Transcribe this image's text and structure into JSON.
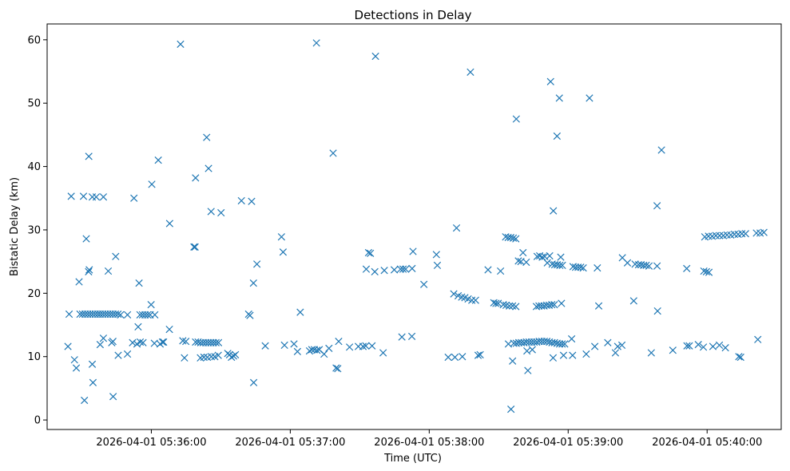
{
  "chart_data": {
    "type": "scatter",
    "title": "Detections in Delay",
    "xlabel": "Time (UTC)",
    "ylabel": "Bistatic Delay (km)",
    "marker": "x",
    "color": "#1f77b4",
    "grid": false,
    "xlim": [
      "2026-04-01 05:35:15",
      "2026-04-01 05:40:32"
    ],
    "ylim": [
      -1.5,
      62.5
    ],
    "xticks": [
      "2026-04-01 05:36:00",
      "2026-04-01 05:37:00",
      "2026-04-01 05:38:00",
      "2026-04-01 05:39:00",
      "2026-04-01 05:40:00"
    ],
    "yticks": [
      0,
      10,
      20,
      30,
      40,
      50,
      60
    ],
    "points": [
      [
        "2026-04-01 05:35:24.0",
        11.6
      ],
      [
        "2026-04-01 05:35:25.4",
        35.3
      ],
      [
        "2026-04-01 05:35:26.8",
        9.5
      ],
      [
        "2026-04-01 05:35:27.6",
        8.2
      ],
      [
        "2026-04-01 05:35:28.8",
        21.8
      ],
      [
        "2026-04-01 05:35:30.7",
        35.3
      ],
      [
        "2026-04-01 05:35:31.1",
        3.1
      ],
      [
        "2026-04-01 05:35:31.9",
        28.6
      ],
      [
        "2026-04-01 05:35:33.0",
        41.6
      ],
      [
        "2026-04-01 05:35:34.5",
        35.2
      ],
      [
        "2026-04-01 05:35:36.2",
        35.2
      ],
      [
        "2026-04-01 05:35:39.3",
        35.2
      ],
      [
        "2026-04-01 05:35:32.9",
        23.4
      ],
      [
        "2026-04-01 05:35:33.2",
        23.7
      ],
      [
        "2026-04-01 05:35:34.5",
        8.8
      ],
      [
        "2026-04-01 05:35:34.8",
        5.9
      ],
      [
        "2026-04-01 05:35:37.9",
        11.9
      ],
      [
        "2026-04-01 05:35:39.3",
        12.9
      ],
      [
        "2026-04-01 05:35:41.4",
        23.5
      ],
      [
        "2026-04-01 05:35:42.9",
        12.2
      ],
      [
        "2026-04-01 05:35:43.4",
        12.4
      ],
      [
        "2026-04-01 05:35:43.5",
        3.7
      ],
      [
        "2026-04-01 05:35:44.6",
        25.8
      ],
      [
        "2026-04-01 05:35:45.7",
        10.2
      ],
      [
        "2026-04-01 05:35:49.7",
        10.4
      ],
      [
        "2026-04-01 05:35:51.9",
        12.2
      ],
      [
        "2026-04-01 05:35:52.5",
        35.0
      ],
      [
        "2026-04-01 05:35:53.8",
        12.0
      ],
      [
        "2026-04-01 05:35:54.3",
        14.7
      ],
      [
        "2026-04-01 05:35:55.2",
        12.3
      ],
      [
        "2026-04-01 05:35:56.4",
        12.2
      ],
      [
        "2026-04-01 05:35:24.5",
        16.7
      ],
      [
        "2026-04-01 05:35:29.2",
        16.7
      ],
      [
        "2026-04-01 05:35:30.3",
        16.7
      ],
      [
        "2026-04-01 05:35:31.4",
        16.7
      ],
      [
        "2026-04-01 05:35:32.5",
        16.7
      ],
      [
        "2026-04-01 05:35:33.6",
        16.7
      ],
      [
        "2026-04-01 05:35:34.7",
        16.7
      ],
      [
        "2026-04-01 05:35:35.8",
        16.7
      ],
      [
        "2026-04-01 05:35:36.9",
        16.7
      ],
      [
        "2026-04-01 05:35:37.9",
        16.7
      ],
      [
        "2026-04-01 05:35:39.0",
        16.7
      ],
      [
        "2026-04-01 05:35:40.1",
        16.7
      ],
      [
        "2026-04-01 05:35:41.2",
        16.7
      ],
      [
        "2026-04-01 05:35:42.3",
        16.7
      ],
      [
        "2026-04-01 05:35:43.4",
        16.7
      ],
      [
        "2026-04-01 05:35:44.5",
        16.7
      ],
      [
        "2026-04-01 05:35:45.6",
        16.7
      ],
      [
        "2026-04-01 05:35:46.7",
        16.6
      ],
      [
        "2026-04-01 05:35:49.7",
        16.6
      ],
      [
        "2026-04-01 05:35:54.7",
        21.6
      ],
      [
        "2026-04-01 05:35:55.1",
        16.6
      ],
      [
        "2026-04-01 05:35:56.2",
        16.6
      ],
      [
        "2026-04-01 05:35:57.3",
        16.6
      ],
      [
        "2026-04-01 05:35:58.4",
        16.6
      ],
      [
        "2026-04-01 05:35:59.5",
        16.6
      ],
      [
        "2026-04-01 05:36:01.5",
        16.6
      ],
      [
        "2026-04-01 05:35:59.9",
        18.2
      ],
      [
        "2026-04-01 05:36:00.2",
        37.2
      ],
      [
        "2026-04-01 05:36:01.3",
        12.1
      ],
      [
        "2026-04-01 05:36:03.0",
        41.0
      ],
      [
        "2026-04-01 05:36:03.8",
        12.0
      ],
      [
        "2026-04-01 05:36:04.8",
        12.3
      ],
      [
        "2026-04-01 05:36:05.3",
        12.3
      ],
      [
        "2026-04-01 05:36:07.8",
        14.3
      ],
      [
        "2026-04-01 05:36:07.9",
        31.0
      ],
      [
        "2026-04-01 05:36:12.6",
        59.3
      ],
      [
        "2026-04-01 05:36:13.6",
        12.5
      ],
      [
        "2026-04-01 05:36:14.3",
        9.8
      ],
      [
        "2026-04-01 05:36:14.9",
        12.4
      ],
      [
        "2026-04-01 05:36:18.4",
        27.3
      ],
      [
        "2026-04-01 05:36:18.9",
        27.3
      ],
      [
        "2026-04-01 05:36:19.1",
        38.2
      ],
      [
        "2026-04-01 05:36:19.1",
        12.3
      ],
      [
        "2026-04-01 05:36:20.2",
        12.3
      ],
      [
        "2026-04-01 05:36:21.3",
        12.2
      ],
      [
        "2026-04-01 05:36:22.4",
        12.2
      ],
      [
        "2026-04-01 05:36:23.5",
        12.2
      ],
      [
        "2026-04-01 05:36:24.6",
        12.2
      ],
      [
        "2026-04-01 05:36:25.7",
        12.2
      ],
      [
        "2026-04-01 05:36:26.8",
        12.2
      ],
      [
        "2026-04-01 05:36:27.9",
        12.2
      ],
      [
        "2026-04-01 05:36:29.0",
        12.2
      ],
      [
        "2026-04-01 05:36:21.2",
        9.8
      ],
      [
        "2026-04-01 05:36:22.7",
        9.9
      ],
      [
        "2026-04-01 05:36:24.2",
        9.9
      ],
      [
        "2026-04-01 05:36:25.9",
        10.0
      ],
      [
        "2026-04-01 05:36:27.4",
        10.0
      ],
      [
        "2026-04-01 05:36:28.9",
        10.2
      ],
      [
        "2026-04-01 05:36:23.9",
        44.6
      ],
      [
        "2026-04-01 05:36:24.7",
        39.7
      ],
      [
        "2026-04-01 05:36:25.8",
        32.9
      ],
      [
        "2026-04-01 05:36:30.1",
        32.7
      ],
      [
        "2026-04-01 05:36:33.0",
        10.5
      ],
      [
        "2026-04-01 05:36:33.8",
        10.3
      ],
      [
        "2026-04-01 05:36:34.6",
        9.9
      ],
      [
        "2026-04-01 05:36:35.5",
        10.1
      ],
      [
        "2026-04-01 05:36:36.3",
        10.3
      ],
      [
        "2026-04-01 05:36:38.9",
        34.6
      ],
      [
        "2026-04-01 05:36:42.0",
        16.7
      ],
      [
        "2026-04-01 05:36:42.6",
        16.5
      ],
      [
        "2026-04-01 05:36:43.3",
        34.5
      ],
      [
        "2026-04-01 05:36:44.1",
        21.6
      ],
      [
        "2026-04-01 05:36:44.2",
        5.9
      ],
      [
        "2026-04-01 05:36:45.6",
        24.6
      ],
      [
        "2026-04-01 05:36:49.2",
        11.7
      ],
      [
        "2026-04-01 05:36:56.2",
        28.9
      ],
      [
        "2026-04-01 05:36:56.9",
        26.5
      ],
      [
        "2026-04-01 05:36:57.5",
        11.8
      ],
      [
        "2026-04-01 05:37:01.6",
        12.0
      ],
      [
        "2026-04-01 05:37:03.1",
        10.8
      ],
      [
        "2026-04-01 05:37:04.3",
        17.0
      ],
      [
        "2026-04-01 05:37:08.3",
        10.9
      ],
      [
        "2026-04-01 05:37:09.3",
        11.1
      ],
      [
        "2026-04-01 05:37:10.4",
        11.1
      ],
      [
        "2026-04-01 05:37:11.3",
        59.5
      ],
      [
        "2026-04-01 05:37:11.5",
        11.0
      ],
      [
        "2026-04-01 05:37:12.5",
        11.1
      ],
      [
        "2026-04-01 05:37:14.6",
        10.4
      ],
      [
        "2026-04-01 05:37:16.7",
        11.3
      ],
      [
        "2026-04-01 05:37:18.5",
        42.1
      ],
      [
        "2026-04-01 05:37:19.8",
        8.2
      ],
      [
        "2026-04-01 05:37:20.5",
        8.1
      ],
      [
        "2026-04-01 05:37:20.9",
        12.4
      ],
      [
        "2026-04-01 05:37:25.6",
        11.5
      ],
      [
        "2026-04-01 05:37:29.4",
        11.6
      ],
      [
        "2026-04-01 05:37:31.4",
        11.6
      ],
      [
        "2026-04-01 05:37:32.6",
        11.7
      ],
      [
        "2026-04-01 05:37:32.8",
        23.8
      ],
      [
        "2026-04-01 05:37:33.8",
        26.4
      ],
      [
        "2026-04-01 05:37:34.6",
        26.3
      ],
      [
        "2026-04-01 05:37:35.3",
        11.7
      ],
      [
        "2026-04-01 05:37:36.5",
        23.4
      ],
      [
        "2026-04-01 05:37:36.8",
        57.4
      ],
      [
        "2026-04-01 05:37:40.1",
        10.6
      ],
      [
        "2026-04-01 05:37:40.6",
        23.6
      ],
      [
        "2026-04-01 05:37:44.9",
        23.7
      ],
      [
        "2026-04-01 05:37:47.6",
        23.8
      ],
      [
        "2026-04-01 05:37:48.7",
        23.8
      ],
      [
        "2026-04-01 05:37:49.8",
        23.8
      ],
      [
        "2026-04-01 05:37:48.2",
        13.1
      ],
      [
        "2026-04-01 05:37:52.5",
        13.2
      ],
      [
        "2026-04-01 05:37:52.6",
        23.9
      ],
      [
        "2026-04-01 05:37:53.0",
        26.6
      ],
      [
        "2026-04-01 05:37:57.7",
        21.4
      ],
      [
        "2026-04-01 05:38:03.1",
        26.1
      ],
      [
        "2026-04-01 05:38:03.5",
        24.4
      ],
      [
        "2026-04-01 05:38:08.2",
        9.9
      ],
      [
        "2026-04-01 05:38:10.6",
        19.9
      ],
      [
        "2026-04-01 05:38:11.1",
        9.9
      ],
      [
        "2026-04-01 05:38:11.8",
        30.3
      ],
      [
        "2026-04-01 05:38:12.5",
        19.6
      ],
      [
        "2026-04-01 05:38:14.0",
        19.4
      ],
      [
        "2026-04-01 05:38:14.3",
        10.0
      ],
      [
        "2026-04-01 05:38:15.4",
        19.3
      ],
      [
        "2026-04-01 05:38:16.8",
        19.1
      ],
      [
        "2026-04-01 05:38:17.8",
        54.9
      ],
      [
        "2026-04-01 05:38:18.4",
        18.9
      ],
      [
        "2026-04-01 05:38:20.0",
        18.9
      ],
      [
        "2026-04-01 05:38:21.1",
        10.2
      ],
      [
        "2026-04-01 05:38:22.0",
        10.3
      ],
      [
        "2026-04-01 05:38:25.4",
        23.7
      ],
      [
        "2026-04-01 05:38:27.9",
        18.5
      ],
      [
        "2026-04-01 05:38:28.8",
        18.4
      ],
      [
        "2026-04-01 05:38:29.8",
        18.4
      ],
      [
        "2026-04-01 05:38:30.8",
        23.5
      ],
      [
        "2026-04-01 05:38:32.0",
        18.2
      ],
      [
        "2026-04-01 05:38:33.2",
        18.1
      ],
      [
        "2026-04-01 05:38:34.6",
        18.0
      ],
      [
        "2026-04-01 05:38:36.0",
        18.0
      ],
      [
        "2026-04-01 05:38:37.4",
        17.9
      ],
      [
        "2026-04-01 05:38:33.0",
        28.9
      ],
      [
        "2026-04-01 05:38:34.1",
        28.8
      ],
      [
        "2026-04-01 05:38:35.2",
        28.8
      ],
      [
        "2026-04-01 05:38:36.3",
        28.7
      ],
      [
        "2026-04-01 05:38:37.4",
        28.6
      ],
      [
        "2026-04-01 05:38:34.2",
        12.0
      ],
      [
        "2026-04-01 05:38:35.3",
        1.7
      ],
      [
        "2026-04-01 05:38:36.0",
        9.3
      ],
      [
        "2026-04-01 05:38:37.6",
        47.5
      ],
      [
        "2026-04-01 05:38:38.5",
        25.1
      ],
      [
        "2026-04-01 05:38:39.6",
        25.0
      ],
      [
        "2026-04-01 05:38:40.5",
        26.4
      ],
      [
        "2026-04-01 05:38:41.9",
        24.9
      ],
      [
        "2026-04-01 05:38:42.2",
        10.9
      ],
      [
        "2026-04-01 05:38:42.6",
        7.8
      ],
      [
        "2026-04-01 05:38:44.5",
        11.1
      ],
      [
        "2026-04-01 05:38:36.5",
        12.1
      ],
      [
        "2026-04-01 05:38:37.6",
        12.1
      ],
      [
        "2026-04-01 05:38:38.7",
        12.2
      ],
      [
        "2026-04-01 05:38:39.8",
        12.2
      ],
      [
        "2026-04-01 05:38:40.9",
        12.2
      ],
      [
        "2026-04-01 05:38:42.0",
        12.3
      ],
      [
        "2026-04-01 05:38:43.1",
        12.3
      ],
      [
        "2026-04-01 05:38:44.2",
        12.3
      ],
      [
        "2026-04-01 05:38:45.3",
        12.3
      ],
      [
        "2026-04-01 05:38:46.4",
        12.3
      ],
      [
        "2026-04-01 05:38:47.5",
        12.4
      ],
      [
        "2026-04-01 05:38:48.6",
        12.4
      ],
      [
        "2026-04-01 05:38:49.7",
        12.4
      ],
      [
        "2026-04-01 05:38:50.8",
        12.4
      ],
      [
        "2026-04-01 05:38:51.9",
        12.3
      ],
      [
        "2026-04-01 05:38:53.0",
        12.2
      ],
      [
        "2026-04-01 05:38:54.1",
        12.2
      ],
      [
        "2026-04-01 05:38:55.2",
        12.1
      ],
      [
        "2026-04-01 05:38:56.3",
        12.0
      ],
      [
        "2026-04-01 05:38:57.4",
        12.0
      ],
      [
        "2026-04-01 05:38:58.5",
        12.0
      ],
      [
        "2026-04-01 05:38:46.6",
        25.8
      ],
      [
        "2026-04-01 05:38:47.7",
        25.9
      ],
      [
        "2026-04-01 05:38:48.8",
        25.7
      ],
      [
        "2026-04-01 05:38:49.9",
        25.8
      ],
      [
        "2026-04-01 05:38:51.0",
        24.8
      ],
      [
        "2026-04-01 05:38:52.0",
        25.9
      ],
      [
        "2026-04-01 05:38:53.1",
        24.6
      ],
      [
        "2026-04-01 05:38:54.2",
        24.5
      ],
      [
        "2026-04-01 05:38:55.3",
        24.5
      ],
      [
        "2026-04-01 05:38:56.4",
        24.4
      ],
      [
        "2026-04-01 05:38:57.5",
        24.4
      ],
      [
        "2026-04-01 05:38:56.8",
        25.7
      ],
      [
        "2026-04-01 05:38:46.3",
        17.9
      ],
      [
        "2026-04-01 05:38:47.4",
        18.0
      ],
      [
        "2026-04-01 05:38:48.5",
        18.0
      ],
      [
        "2026-04-01 05:38:49.6",
        18.0
      ],
      [
        "2026-04-01 05:38:50.7",
        18.1
      ],
      [
        "2026-04-01 05:38:51.8",
        18.1
      ],
      [
        "2026-04-01 05:38:52.9",
        18.2
      ],
      [
        "2026-04-01 05:38:54.0",
        18.2
      ],
      [
        "2026-04-01 05:38:57.1",
        18.4
      ],
      [
        "2026-04-01 05:38:52.4",
        53.4
      ],
      [
        "2026-04-01 05:38:53.6",
        33.0
      ],
      [
        "2026-04-01 05:38:53.5",
        9.8
      ],
      [
        "2026-04-01 05:38:55.2",
        44.8
      ],
      [
        "2026-04-01 05:38:56.2",
        50.8
      ],
      [
        "2026-04-01 05:38:58.0",
        10.2
      ],
      [
        "2026-04-01 05:39:01.5",
        12.8
      ],
      [
        "2026-04-01 05:39:02.1",
        24.2
      ],
      [
        "2026-04-01 05:39:03.2",
        24.1
      ],
      [
        "2026-04-01 05:39:04.3",
        24.1
      ],
      [
        "2026-04-01 05:39:05.4",
        24.1
      ],
      [
        "2026-04-01 05:39:06.5",
        24.0
      ],
      [
        "2026-04-01 05:39:01.9",
        10.2
      ],
      [
        "2026-04-01 05:39:07.8",
        10.4
      ],
      [
        "2026-04-01 05:39:09.2",
        50.8
      ],
      [
        "2026-04-01 05:39:11.5",
        11.6
      ],
      [
        "2026-04-01 05:39:12.6",
        24.0
      ],
      [
        "2026-04-01 05:39:13.2",
        18.0
      ],
      [
        "2026-04-01 05:39:17.1",
        12.2
      ],
      [
        "2026-04-01 05:39:20.4",
        10.6
      ],
      [
        "2026-04-01 05:39:21.4",
        11.6
      ],
      [
        "2026-04-01 05:39:23.2",
        11.8
      ],
      [
        "2026-04-01 05:39:23.4",
        25.6
      ],
      [
        "2026-04-01 05:39:25.6",
        24.8
      ],
      [
        "2026-04-01 05:39:28.3",
        18.8
      ],
      [
        "2026-04-01 05:39:28.9",
        24.6
      ],
      [
        "2026-04-01 05:39:30.4",
        24.5
      ],
      [
        "2026-04-01 05:39:31.5",
        24.5
      ],
      [
        "2026-04-01 05:39:32.6",
        24.4
      ],
      [
        "2026-04-01 05:39:33.7",
        24.4
      ],
      [
        "2026-04-01 05:39:34.9",
        24.3
      ],
      [
        "2026-04-01 05:39:35.9",
        10.6
      ],
      [
        "2026-04-01 05:39:38.4",
        24.3
      ],
      [
        "2026-04-01 05:39:38.4",
        33.8
      ],
      [
        "2026-04-01 05:39:38.6",
        17.2
      ],
      [
        "2026-04-01 05:39:40.3",
        42.6
      ],
      [
        "2026-04-01 05:39:45.2",
        11.0
      ],
      [
        "2026-04-01 05:39:51.2",
        23.9
      ],
      [
        "2026-04-01 05:39:51.3",
        11.7
      ],
      [
        "2026-04-01 05:39:52.3",
        11.7
      ],
      [
        "2026-04-01 05:39:56.2",
        11.9
      ],
      [
        "2026-04-01 05:39:58.4",
        11.5
      ],
      [
        "2026-04-01 05:39:58.6",
        23.5
      ],
      [
        "2026-04-01 05:39:59.7",
        23.4
      ],
      [
        "2026-04-01 05:40:00.8",
        23.3
      ],
      [
        "2026-04-01 05:40:02.5",
        11.6
      ],
      [
        "2026-04-01 05:40:05.3",
        11.8
      ],
      [
        "2026-04-01 05:40:07.9",
        11.4
      ],
      [
        "2026-04-01 05:40:13.7",
        10.0
      ],
      [
        "2026-04-01 05:40:14.5",
        9.9
      ],
      [
        "2026-04-01 05:40:21.9",
        12.7
      ],
      [
        "2026-04-01 05:39:59.0",
        28.9
      ],
      [
        "2026-04-01 05:40:00.6",
        29.0
      ],
      [
        "2026-04-01 05:40:02.2",
        29.0
      ],
      [
        "2026-04-01 05:40:03.8",
        29.1
      ],
      [
        "2026-04-01 05:40:05.4",
        29.1
      ],
      [
        "2026-04-01 05:40:07.0",
        29.1
      ],
      [
        "2026-04-01 05:40:08.6",
        29.2
      ],
      [
        "2026-04-01 05:40:10.2",
        29.2
      ],
      [
        "2026-04-01 05:40:11.8",
        29.3
      ],
      [
        "2026-04-01 05:40:13.4",
        29.3
      ],
      [
        "2026-04-01 05:40:15.0",
        29.4
      ],
      [
        "2026-04-01 05:40:16.6",
        29.4
      ],
      [
        "2026-04-01 05:40:21.3",
        29.5
      ],
      [
        "2026-04-01 05:40:22.9",
        29.5
      ],
      [
        "2026-04-01 05:40:24.5",
        29.6
      ]
    ]
  }
}
